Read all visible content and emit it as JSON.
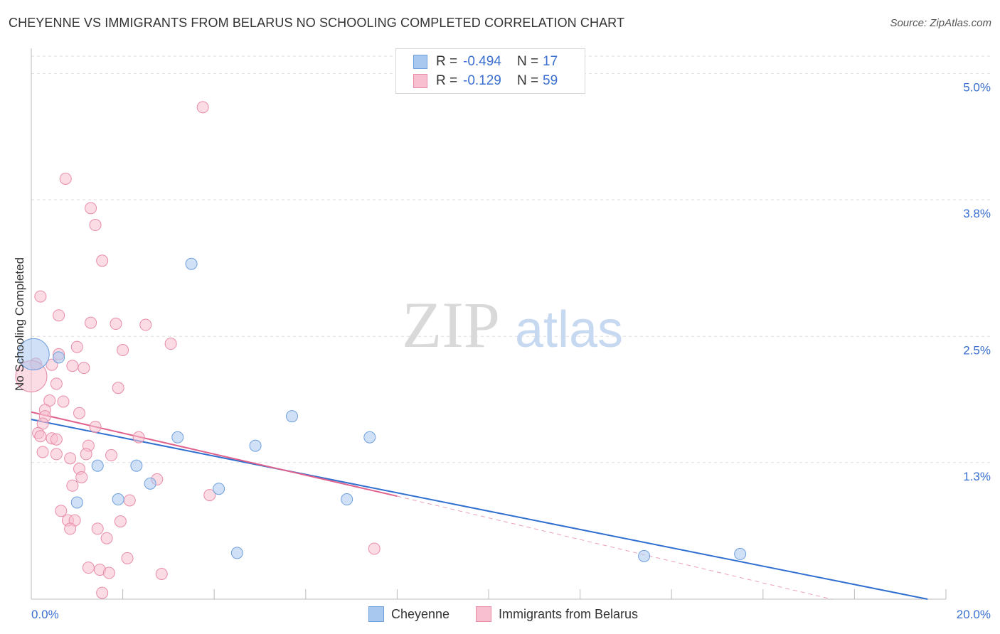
{
  "title": "CHEYENNE VS IMMIGRANTS FROM BELARUS NO SCHOOLING COMPLETED CORRELATION CHART",
  "source": "Source: ZipAtlas.com",
  "watermark": {
    "zip": "ZIP",
    "atlas": "atlas"
  },
  "legend": {
    "cheyenne": {
      "r_label": "R =",
      "r_value": "-0.494",
      "n_label": "N =",
      "n_value": "17"
    },
    "belarus": {
      "r_label": "R =",
      "r_value": "-0.129",
      "n_label": "N =",
      "n_value": "59"
    }
  },
  "bottom_legend": {
    "cheyenne": "Cheyenne",
    "belarus": "Immigrants from Belarus"
  },
  "chart_data": {
    "type": "scatter",
    "title": "CHEYENNE VS IMMIGRANTS FROM BELARUS NO SCHOOLING COMPLETED CORRELATION CHART",
    "xlabel": "",
    "ylabel": "No Schooling Completed",
    "xlim": [
      0,
      20
    ],
    "ylim": [
      0,
      5.2
    ],
    "x_tick_labels": {
      "min": "0.0%",
      "max": "20.0%"
    },
    "y_ticks": [
      {
        "value": 5.0,
        "label": "5.0%"
      },
      {
        "value": 3.8,
        "label": "3.8%"
      },
      {
        "value": 2.5,
        "label": "2.5%"
      },
      {
        "value": 1.3,
        "label": "1.3%"
      }
    ],
    "colors": {
      "cheyenne_fill": "#a9c8f0",
      "cheyenne_stroke": "#6f9fdc",
      "cheyenne_line": "#2f6fcf",
      "belarus_fill": "#f7bfcf",
      "belarus_stroke": "#e88ca7",
      "belarus_line": "#e0628c"
    },
    "series": [
      {
        "name": "Cheyenne",
        "r": -0.494,
        "n": 17,
        "trend": {
          "x0": 0,
          "y0": 1.71,
          "x1": 19.6,
          "y1": 0.0
        },
        "points": [
          {
            "x": 0.05,
            "y": 2.33,
            "big": true
          },
          {
            "x": 0.6,
            "y": 2.3
          },
          {
            "x": 3.5,
            "y": 3.19
          },
          {
            "x": 5.7,
            "y": 1.74
          },
          {
            "x": 7.4,
            "y": 1.54
          },
          {
            "x": 3.2,
            "y": 1.54
          },
          {
            "x": 4.9,
            "y": 1.46
          },
          {
            "x": 2.3,
            "y": 1.27
          },
          {
            "x": 1.45,
            "y": 1.27
          },
          {
            "x": 2.6,
            "y": 1.1
          },
          {
            "x": 4.1,
            "y": 1.05
          },
          {
            "x": 1.9,
            "y": 0.95
          },
          {
            "x": 1.0,
            "y": 0.92
          },
          {
            "x": 6.9,
            "y": 0.95
          },
          {
            "x": 4.5,
            "y": 0.44
          },
          {
            "x": 13.4,
            "y": 0.41
          },
          {
            "x": 15.5,
            "y": 0.43
          }
        ]
      },
      {
        "name": "Immigrants from Belarus",
        "r": -0.129,
        "n": 59,
        "trend": {
          "x0": 0,
          "y0": 1.78,
          "x1": 8.0,
          "y1": 0.98
        },
        "trend_dashed": {
          "x0": 8.0,
          "y0": 0.98,
          "x1": 17.5,
          "y1": 0.0
        },
        "points": [
          {
            "x": 3.75,
            "y": 4.68
          },
          {
            "x": 0.75,
            "y": 4.0
          },
          {
            "x": 1.3,
            "y": 3.72
          },
          {
            "x": 1.4,
            "y": 3.56
          },
          {
            "x": 1.55,
            "y": 3.22
          },
          {
            "x": 0.2,
            "y": 2.88
          },
          {
            "x": 0.6,
            "y": 2.7
          },
          {
            "x": 1.3,
            "y": 2.63
          },
          {
            "x": 1.85,
            "y": 2.62
          },
          {
            "x": 2.5,
            "y": 2.61
          },
          {
            "x": 3.05,
            "y": 2.43
          },
          {
            "x": 1.0,
            "y": 2.4
          },
          {
            "x": 2.0,
            "y": 2.37
          },
          {
            "x": 0.6,
            "y": 2.33
          },
          {
            "x": 0.1,
            "y": 2.24
          },
          {
            "x": 0.45,
            "y": 2.23
          },
          {
            "x": 0.9,
            "y": 2.22
          },
          {
            "x": 1.15,
            "y": 2.2
          },
          {
            "x": 0.0,
            "y": 2.12,
            "big": true
          },
          {
            "x": 0.55,
            "y": 2.05
          },
          {
            "x": 1.9,
            "y": 2.01
          },
          {
            "x": 0.4,
            "y": 1.89
          },
          {
            "x": 0.7,
            "y": 1.88
          },
          {
            "x": 0.3,
            "y": 1.8
          },
          {
            "x": 1.05,
            "y": 1.77
          },
          {
            "x": 0.3,
            "y": 1.74
          },
          {
            "x": 0.25,
            "y": 1.67
          },
          {
            "x": 1.4,
            "y": 1.64
          },
          {
            "x": 0.15,
            "y": 1.58
          },
          {
            "x": 0.2,
            "y": 1.55
          },
          {
            "x": 0.45,
            "y": 1.53
          },
          {
            "x": 0.55,
            "y": 1.52
          },
          {
            "x": 2.35,
            "y": 1.54
          },
          {
            "x": 1.25,
            "y": 1.46
          },
          {
            "x": 0.25,
            "y": 1.4
          },
          {
            "x": 0.55,
            "y": 1.38
          },
          {
            "x": 1.2,
            "y": 1.38
          },
          {
            "x": 1.75,
            "y": 1.37
          },
          {
            "x": 0.85,
            "y": 1.34
          },
          {
            "x": 1.05,
            "y": 1.24
          },
          {
            "x": 1.1,
            "y": 1.16
          },
          {
            "x": 2.75,
            "y": 1.14
          },
          {
            "x": 0.9,
            "y": 1.08
          },
          {
            "x": 3.9,
            "y": 0.99
          },
          {
            "x": 2.15,
            "y": 0.94
          },
          {
            "x": 0.65,
            "y": 0.84
          },
          {
            "x": 0.8,
            "y": 0.75
          },
          {
            "x": 0.95,
            "y": 0.75
          },
          {
            "x": 1.95,
            "y": 0.74
          },
          {
            "x": 0.85,
            "y": 0.67
          },
          {
            "x": 1.45,
            "y": 0.67
          },
          {
            "x": 1.65,
            "y": 0.58
          },
          {
            "x": 7.5,
            "y": 0.48
          },
          {
            "x": 2.1,
            "y": 0.39
          },
          {
            "x": 1.25,
            "y": 0.3
          },
          {
            "x": 1.5,
            "y": 0.28
          },
          {
            "x": 1.7,
            "y": 0.25
          },
          {
            "x": 2.85,
            "y": 0.24
          },
          {
            "x": 1.55,
            "y": 0.06
          }
        ]
      }
    ]
  }
}
